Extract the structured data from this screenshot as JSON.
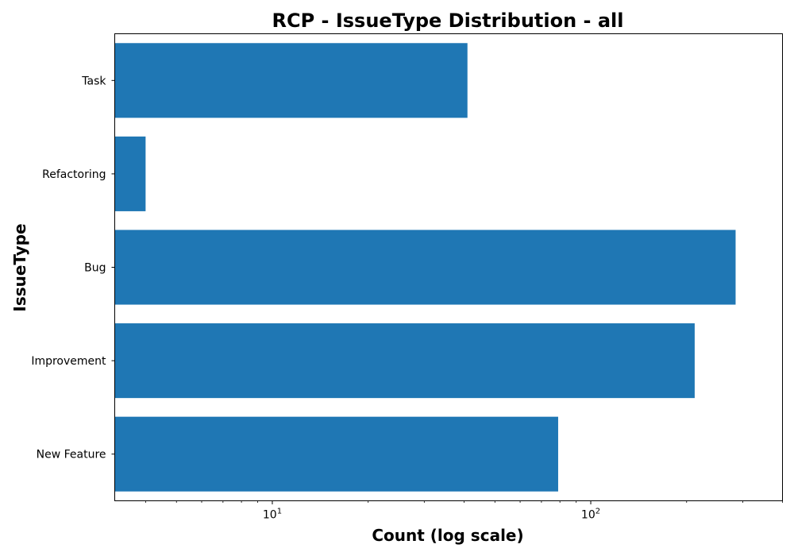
{
  "chart_data": {
    "type": "bar",
    "orientation": "horizontal",
    "title": "RCP - IssueType Distribution - all",
    "xlabel": "Count (log scale)",
    "ylabel": "IssueType",
    "x_scale": "log",
    "xlim": [
      3.2,
      400
    ],
    "x_ticks": [
      {
        "value": 10,
        "base": "10",
        "exp": "1"
      },
      {
        "value": 100,
        "base": "10",
        "exp": "2"
      }
    ],
    "categories": [
      "New Feature",
      "Improvement",
      "Bug",
      "Refactoring",
      "Task"
    ],
    "values": [
      79,
      212,
      285,
      4,
      41
    ],
    "bar_color": "#1f77b4",
    "grid": false,
    "legend": "none"
  }
}
